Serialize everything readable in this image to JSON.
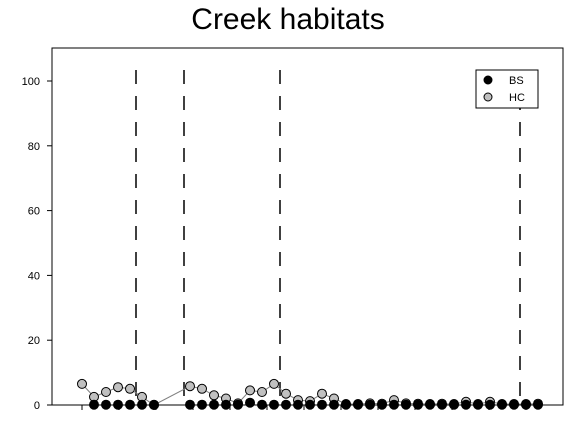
{
  "chart_data": {
    "type": "scatter",
    "title": "Creek habitats",
    "xlabel": "",
    "ylabel": "",
    "ylim": [
      0,
      110
    ],
    "xlim": [
      0,
      39
    ],
    "y_ticks": [
      0,
      20,
      40,
      60,
      80,
      100
    ],
    "grid": false,
    "legend_position": "top-right",
    "x_tick_count": 13,
    "dividers_x": [
      5.5,
      9.5,
      17.5,
      37.5
    ],
    "colors": {
      "BS": "#000000",
      "HC": "#c0c0c0",
      "outline": "#000000",
      "connector": "#808080"
    },
    "series": [
      {
        "name": "BS",
        "style": "filled-black",
        "connected": false,
        "x": [
          2,
          3,
          4,
          5,
          6,
          7,
          10,
          11,
          12,
          13,
          14,
          15,
          16,
          17,
          18,
          19,
          20,
          21,
          22,
          23,
          24,
          25,
          26,
          27,
          28,
          29,
          30,
          31,
          32,
          33,
          34,
          35,
          36,
          37,
          38,
          39
        ],
        "y": [
          0.1,
          0.1,
          0.1,
          0.1,
          0.1,
          0.1,
          0.1,
          0.1,
          0.1,
          0.1,
          0.1,
          0.7,
          0.1,
          0.1,
          0.1,
          0.1,
          0.1,
          0.1,
          0.1,
          0.1,
          0.1,
          0.1,
          0.1,
          0.1,
          0.1,
          0.1,
          0.1,
          0.1,
          0.1,
          0.1,
          0.1,
          0.1,
          0.1,
          0.1,
          0.1,
          0.1
        ]
      },
      {
        "name": "HC",
        "style": "filled-gray",
        "connected": true,
        "x": [
          1,
          2,
          3,
          4,
          5,
          6,
          7,
          10,
          11,
          12,
          13,
          14,
          15,
          16,
          17,
          18,
          19,
          20,
          21,
          22,
          23,
          24,
          25,
          26,
          27,
          28,
          29,
          30,
          31,
          32,
          33,
          34,
          35,
          36,
          37,
          38,
          39
        ],
        "y": [
          6.5,
          2.5,
          4.0,
          5.5,
          5.0,
          2.5,
          0.0,
          5.8,
          5.0,
          3.0,
          2.0,
          0.5,
          4.5,
          4.0,
          6.5,
          3.5,
          1.5,
          1.2,
          3.5,
          2.0,
          0.3,
          0.3,
          0.5,
          0.4,
          1.5,
          0.5,
          0.4,
          0.3,
          0.4,
          0.3,
          1.0,
          0.3,
          1.0,
          0.3,
          0.3,
          0.3,
          0.4
        ]
      }
    ]
  }
}
